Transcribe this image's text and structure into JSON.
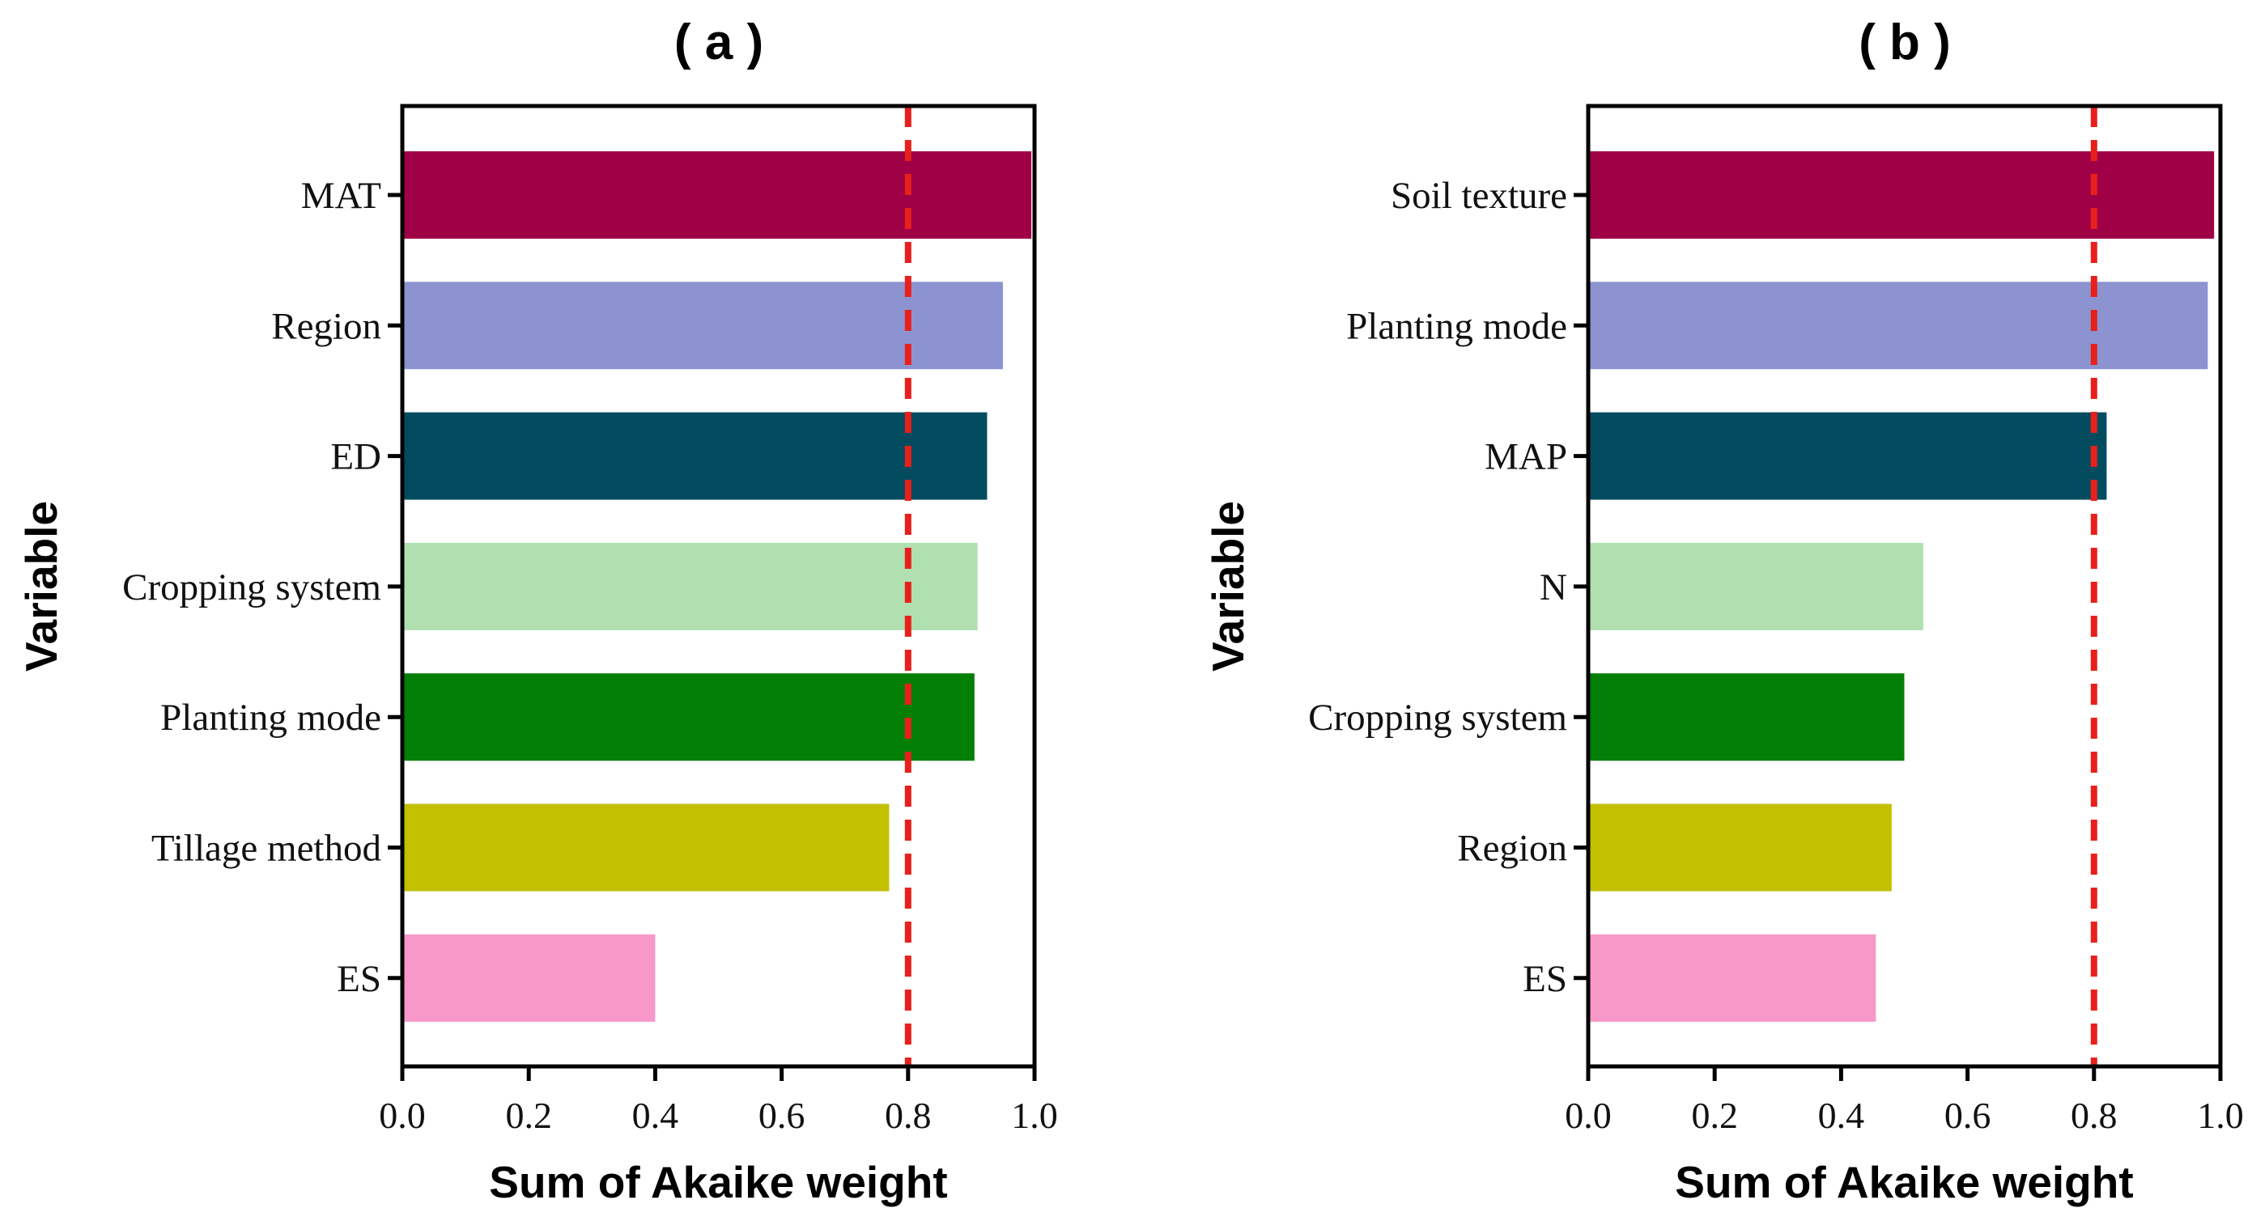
{
  "chart_data": [
    {
      "type": "bar",
      "orientation": "horizontal",
      "title": "( a )",
      "xlabel": "Sum of Akaike weight",
      "ylabel": "Variable",
      "xlim": [
        0,
        1
      ],
      "xticks": [
        "0.0",
        "0.2",
        "0.4",
        "0.6",
        "0.8",
        "1.0"
      ],
      "xtick_values": [
        0,
        0.2,
        0.4,
        0.6,
        0.8,
        1.0
      ],
      "threshold": 0.8,
      "threshold_color": "#e8201c",
      "categories": [
        "MAT",
        "Region",
        "ED",
        "Cropping system",
        "Planting mode",
        "Tillage method",
        "ES"
      ],
      "values": [
        0.995,
        0.95,
        0.925,
        0.91,
        0.905,
        0.77,
        0.4
      ],
      "colors": [
        "#a00046",
        "#8c93d0",
        "#034c60",
        "#b0e0b0",
        "#027f06",
        "#c2c000",
        "#f898c8"
      ]
    },
    {
      "type": "bar",
      "orientation": "horizontal",
      "title": "( b )",
      "xlabel": "Sum of Akaike weight",
      "ylabel": "Variable",
      "xlim": [
        0,
        1
      ],
      "xticks": [
        "0.0",
        "0.2",
        "0.4",
        "0.6",
        "0.8",
        "1.0"
      ],
      "xtick_values": [
        0,
        0.2,
        0.4,
        0.6,
        0.8,
        1.0
      ],
      "threshold": 0.8,
      "threshold_color": "#e8201c",
      "categories": [
        "Soil texture",
        "Planting mode",
        "MAP",
        "N",
        "Cropping system",
        "Region",
        "ES"
      ],
      "values": [
        0.99,
        0.98,
        0.82,
        0.53,
        0.5,
        0.48,
        0.455
      ],
      "colors": [
        "#a00046",
        "#8c93d0",
        "#034c60",
        "#b0e0b0",
        "#027f06",
        "#c2c000",
        "#f898c8"
      ]
    }
  ]
}
